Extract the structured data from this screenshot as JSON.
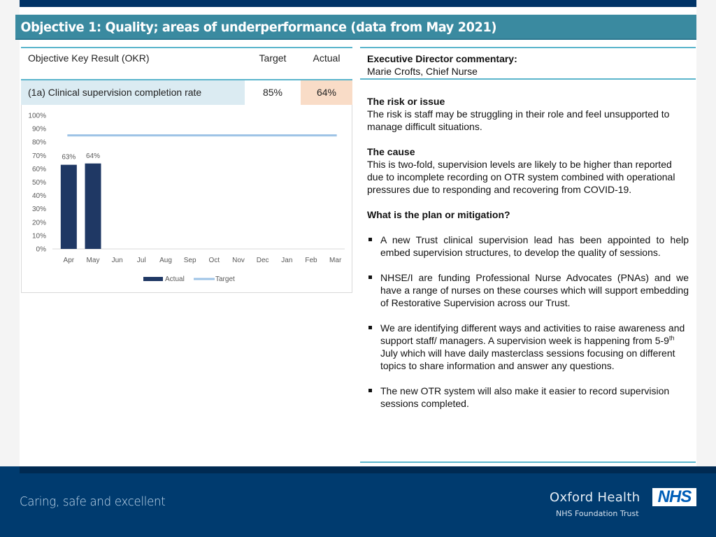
{
  "header": {
    "title": "Objective 1: Quality; areas of underperformance (data from May 2021)"
  },
  "okr_table": {
    "headers": {
      "okr": "Objective Key Result (OKR)",
      "target": "Target",
      "actual": "Actual"
    },
    "rows": [
      {
        "okr": "(1a) Clinical supervision completion rate",
        "target": "85%",
        "actual": "64%"
      }
    ]
  },
  "commentary": {
    "heading": "Executive Director commentary:",
    "author": "Marie Crofts, Chief Nurse",
    "risk_heading": "The risk or issue",
    "risk_text": "The risk is staff may be struggling in their role and feel unsupported to manage difficult situations.",
    "cause_heading": "The cause",
    "cause_text": "This is two-fold, supervision levels are likely to be higher than reported due to incomplete recording on OTR system combined with operational pressures due to responding and recovering from COVID-19.",
    "plan_heading": "What is the plan or mitigation?",
    "bullets": [
      "A new Trust clinical supervision lead has been appointed to help embed supervision structures, to develop the quality of sessions.",
      "NHSE/I are funding Professional Nurse Advocates (PNAs) and we have a range of nurses on these courses which will support embedding of Restorative Supervision across our Trust.",
      {
        "pre": "We are identifying different ways and activities to raise awareness and support staff/ managers. A supervision week is happening from 5-9",
        "sup": "th",
        "post": " July which will have daily masterclass sessions focusing on different topics to share information and answer any questions."
      },
      "The new OTR system will also make it easier to record supervision sessions completed."
    ]
  },
  "footer": {
    "tagline": "Caring, safe and excellent",
    "org_name": "Oxford Health",
    "org_sub": "NHS Foundation Trust",
    "nhs_logo": "NHS"
  },
  "colors": {
    "title_bar": "#3a8aa0",
    "navy": "#003b6f",
    "bar": "#1f3864",
    "target_line": "#9dc3e6",
    "okr_cell": "#dbebf2",
    "actual_cell": "#f9dcc7",
    "rule": "#5bb5cc"
  },
  "chart_data": {
    "type": "bar",
    "title": "",
    "categories": [
      "Apr",
      "May",
      "Jun",
      "Jul",
      "Aug",
      "Sep",
      "Oct",
      "Nov",
      "Dec",
      "Jan",
      "Feb",
      "Mar"
    ],
    "series": [
      {
        "name": "Actual",
        "type": "bar",
        "values": [
          63,
          64,
          null,
          null,
          null,
          null,
          null,
          null,
          null,
          null,
          null,
          null
        ],
        "data_labels": [
          "63%",
          "64%"
        ]
      },
      {
        "name": "Target",
        "type": "line",
        "values": [
          85,
          85,
          85,
          85,
          85,
          85,
          85,
          85,
          85,
          85,
          85,
          85
        ]
      }
    ],
    "yticks": [
      "0%",
      "10%",
      "20%",
      "30%",
      "40%",
      "50%",
      "60%",
      "70%",
      "80%",
      "90%",
      "100%"
    ],
    "xlabel": "",
    "ylabel": "",
    "ylim": [
      0,
      100
    ],
    "grid": false,
    "legend": {
      "position": "bottom",
      "entries": [
        "Actual",
        "Target"
      ]
    }
  }
}
